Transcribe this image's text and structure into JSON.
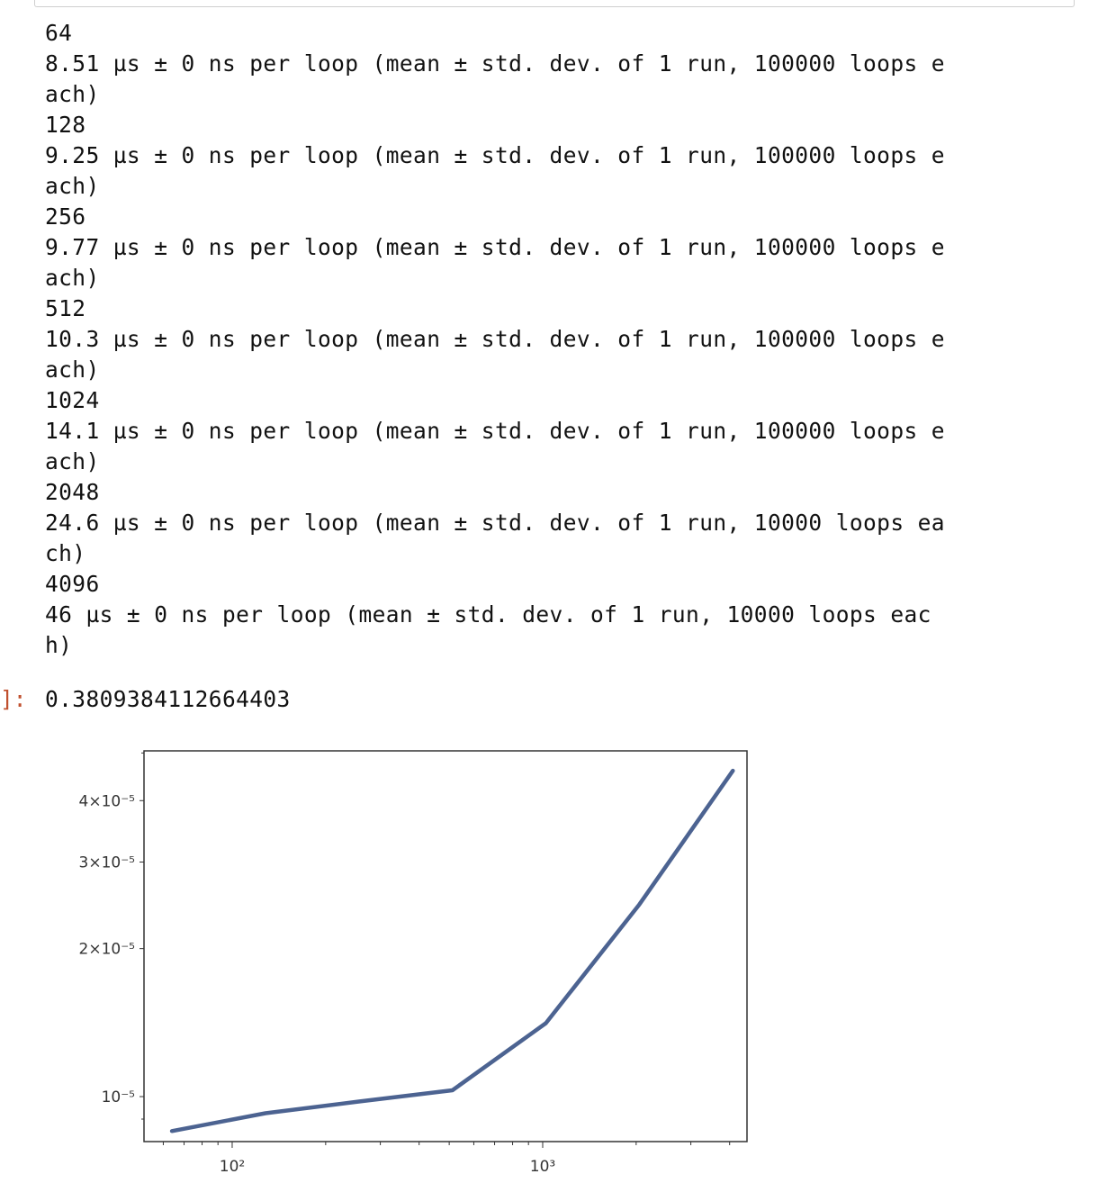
{
  "stdout_lines": [
    "64",
    "8.51 µs ± 0 ns per loop (mean ± std. dev. of 1 run, 100000 loops e",
    "ach)",
    "128",
    "9.25 µs ± 0 ns per loop (mean ± std. dev. of 1 run, 100000 loops e",
    "ach)",
    "256",
    "9.77 µs ± 0 ns per loop (mean ± std. dev. of 1 run, 100000 loops e",
    "ach)",
    "512",
    "10.3 µs ± 0 ns per loop (mean ± std. dev. of 1 run, 100000 loops e",
    "ach)",
    "1024",
    "14.1 µs ± 0 ns per loop (mean ± std. dev. of 1 run, 100000 loops e",
    "ach)",
    "2048",
    "24.6 µs ± 0 ns per loop (mean ± std. dev. of 1 run, 10000 loops ea",
    "ch)",
    "4096",
    "46 µs ± 0 ns per loop (mean ± std. dev. of 1 run, 10000 loops eac",
    "h)"
  ],
  "output": {
    "prompt": "]:",
    "value": "0.3809384112664403"
  },
  "colors": {
    "prompt": "#c0502e",
    "line": "#4c6391",
    "frame": "#333333"
  },
  "chart_data": {
    "type": "line",
    "x_scale": "log",
    "y_scale": "log",
    "title": "",
    "xlabel": "",
    "ylabel": "",
    "grid": false,
    "x": [
      64,
      128,
      256,
      512,
      1024,
      2048,
      4096
    ],
    "series": [
      {
        "values": [
          8.51e-06,
          9.25e-06,
          9.77e-06,
          1.03e-05,
          1.41e-05,
          2.46e-05,
          4.6e-05
        ]
      }
    ],
    "xlim": [
      52,
      4550
    ],
    "ylim": [
      8.1e-06,
      5.05e-05
    ],
    "x_major_ticks": [
      {
        "value": 100,
        "label": "10²"
      },
      {
        "value": 1000,
        "label": "10³"
      }
    ],
    "y_ticks": [
      {
        "value": 1e-05,
        "label": "10⁻⁵"
      },
      {
        "value": 2e-05,
        "label": "2×10⁻⁵"
      },
      {
        "value": 3e-05,
        "label": "3×10⁻⁵"
      },
      {
        "value": 4e-05,
        "label": "4×10⁻⁵"
      }
    ]
  }
}
